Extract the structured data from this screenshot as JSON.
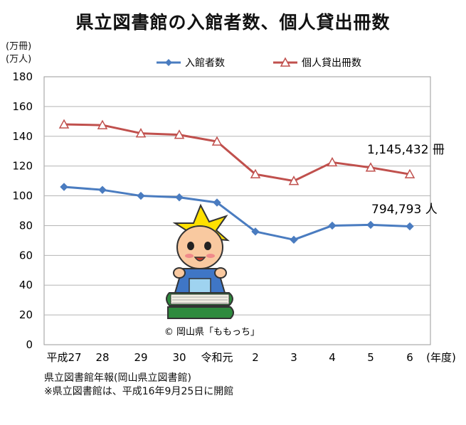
{
  "title": "県立図書館の入館者数、個人貸出冊数",
  "unit_line1": "(万冊)",
  "unit_line2": "(万人)",
  "copyright": "© 岡山県「ももっち」",
  "source_note": "県立図書館年報(岡山県立図書館)",
  "footnote": "※県立図書館は、平成16年9月25日に開館",
  "x_axis_suffix": "(年度)",
  "chart_data": {
    "type": "line",
    "categories": [
      "平成27",
      "28",
      "29",
      "30",
      "令和元",
      "2",
      "3",
      "4",
      "5",
      "6"
    ],
    "series": [
      {
        "name": "入館者数",
        "color": "#4a7cc0",
        "marker": "diamond",
        "values": [
          106,
          104,
          100,
          99,
          95.5,
          76,
          70.5,
          80,
          80.5,
          79.5
        ]
      },
      {
        "name": "個人貸出冊数",
        "color": "#c0504d",
        "marker": "triangle-open",
        "values": [
          148,
          147.5,
          142,
          141,
          136.5,
          114.5,
          110,
          122.5,
          119,
          114.5
        ]
      }
    ],
    "ylim": [
      0,
      180
    ],
    "yticks": [
      0,
      20,
      40,
      60,
      80,
      100,
      120,
      140,
      160,
      180
    ],
    "grid": true,
    "legend_position": "top",
    "annotations": [
      {
        "text": "1,145,432 冊",
        "series": "個人貸出冊数"
      },
      {
        "text": "794,793 人",
        "series": "入館者数"
      }
    ]
  }
}
